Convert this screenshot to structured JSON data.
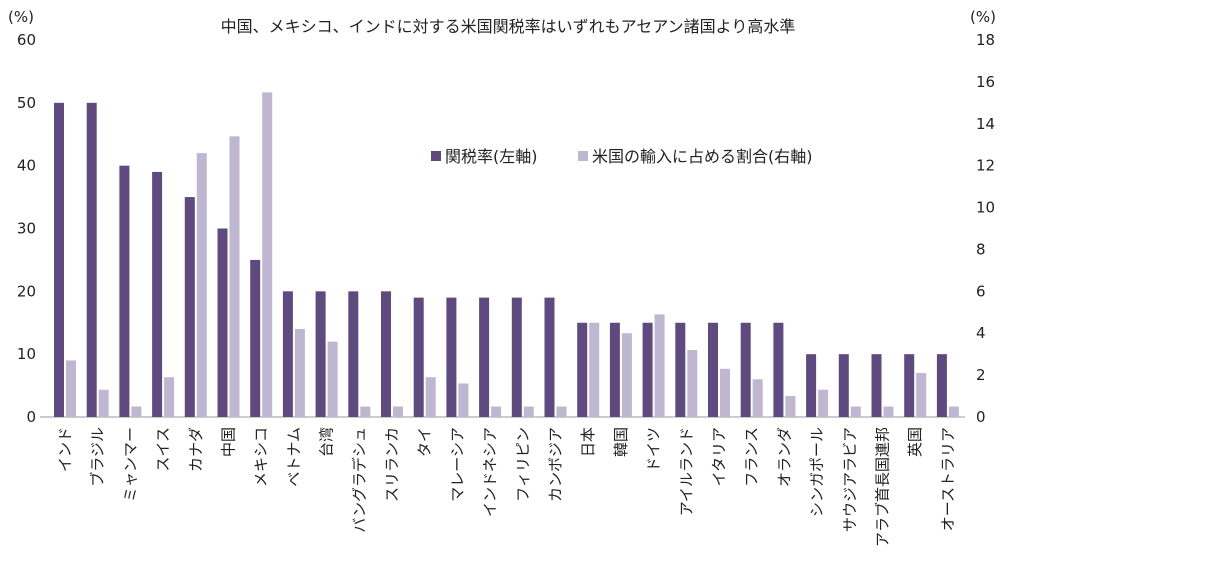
{
  "chart_data": {
    "type": "bar",
    "title": "中国、メキシコ、インドに対する米国関税率はいずれもアセアン諸国より高水準",
    "y_left_unit": "(%)",
    "y_right_unit": "(%)",
    "ylim_left": [
      0,
      60
    ],
    "ylim_right": [
      0,
      18
    ],
    "yticks_left": [
      "0",
      "10",
      "20",
      "30",
      "40",
      "50",
      "60"
    ],
    "yticks_right": [
      "0",
      "2",
      "4",
      "6",
      "8",
      "10",
      "12",
      "14",
      "16",
      "18"
    ],
    "grid": false,
    "legend_position": "center",
    "categories": [
      "インド",
      "ブラジル",
      "ミャンマー",
      "スイス",
      "カナダ",
      "中国",
      "メキシコ",
      "ベトナム",
      "台湾",
      "バングラデシュ",
      "スリランカ",
      "タイ",
      "マレーシア",
      "インドネシア",
      "フィリピン",
      "カンボジア",
      "日本",
      "韓国",
      "ドイツ",
      "アイルランド",
      "イタリア",
      "フランス",
      "オランダ",
      "シンガポール",
      "サウジアラビア",
      "アラブ首長国連邦",
      "英国",
      "オーストラリア"
    ],
    "series": [
      {
        "name": "関税率(左軸)",
        "axis": "left",
        "color": "#5e4a7e",
        "values": [
          50,
          50,
          40,
          39,
          35,
          30,
          25,
          20,
          20,
          20,
          20,
          19,
          19,
          19,
          19,
          19,
          15,
          15,
          15,
          15,
          15,
          15,
          15,
          10,
          10,
          10,
          10,
          10
        ]
      },
      {
        "name": "米国の輸入に占める割合(右軸)",
        "axis": "right",
        "color": "#bfb6cf",
        "values": [
          2.7,
          1.3,
          0.5,
          1.9,
          12.6,
          13.4,
          15.5,
          4.2,
          3.6,
          0.5,
          0.5,
          1.9,
          1.6,
          0.5,
          0.5,
          0.5,
          4.5,
          4.0,
          4.9,
          3.2,
          2.3,
          1.8,
          1.0,
          1.3,
          0.5,
          0.5,
          2.1,
          0.5
        ]
      }
    ]
  }
}
